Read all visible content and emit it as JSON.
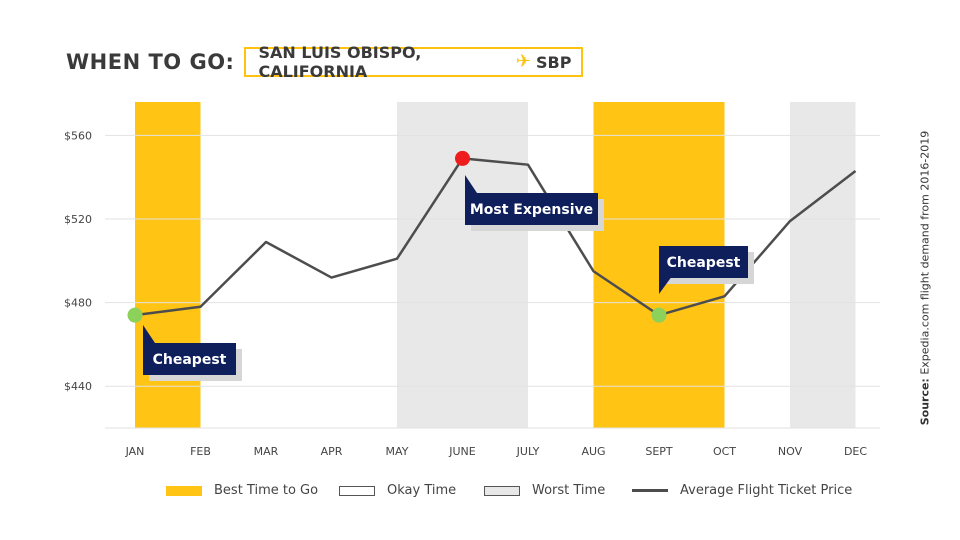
{
  "header": {
    "title": "WHEN TO GO:",
    "location": "SAN LUIS OBISPO, CALIFORNIA",
    "plane_icon": "airplane-icon",
    "airport_code": "SBP"
  },
  "source": {
    "label": "Source:",
    "text": "Expedia.com flight demand from 2016-2019"
  },
  "colors": {
    "best": "#ffc414",
    "worst": "#e8e8e8",
    "line": "#4d4d4d",
    "callout": "#0f1f5c",
    "cheapest_dot": "#8cd15a",
    "expensive_dot": "#ee1c1c"
  },
  "legend": {
    "best": "Best Time to Go",
    "okay": "Okay Time",
    "worst": "Worst Time",
    "line": "Average Flight Ticket Price"
  },
  "chart_data": {
    "type": "line",
    "categories": [
      "JAN",
      "FEB",
      "MAR",
      "APR",
      "MAY",
      "JUNE",
      "JULY",
      "AUG",
      "SEPT",
      "OCT",
      "NOV",
      "DEC"
    ],
    "series": [
      {
        "name": "Average Flight Ticket Price",
        "values": [
          474,
          478,
          509,
          492,
          501,
          549,
          546,
          495,
          474,
          483,
          519,
          543
        ]
      }
    ],
    "ylim": [
      420,
      576
    ],
    "yticks": [
      440,
      480,
      520,
      560
    ],
    "ytick_labels": [
      "$440",
      "$480",
      "$520",
      "$560"
    ],
    "best_time_bands": [
      [
        "JAN",
        "FEB"
      ],
      [
        "AUG",
        "OCT"
      ]
    ],
    "worst_time_bands": [
      [
        "MAY",
        "JULY"
      ],
      [
        "NOV",
        "DEC"
      ]
    ],
    "grid": true,
    "legend_position": "bottom",
    "annotations": [
      {
        "text": "Cheapest",
        "category": "JAN",
        "type": "cheapest"
      },
      {
        "text": "Most Expensive",
        "category": "JUNE",
        "type": "most-expensive"
      },
      {
        "text": "Cheapest",
        "category": "SEPT",
        "type": "cheapest"
      }
    ]
  }
}
